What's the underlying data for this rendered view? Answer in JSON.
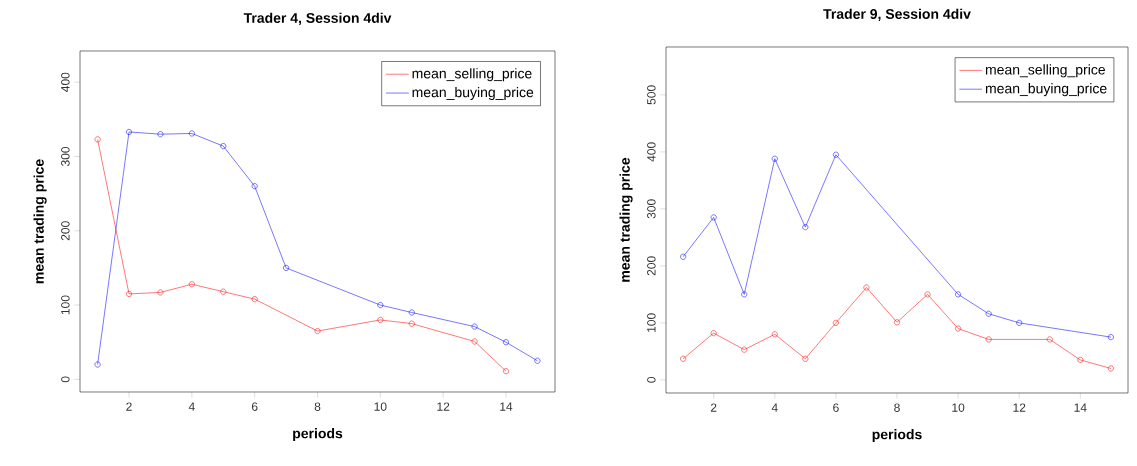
{
  "chart_data": [
    {
      "type": "line",
      "title": "Trader 4, Session 4div",
      "xlabel": "periods",
      "ylabel": "mean trading price",
      "xlim": [
        0.44,
        15.56
      ],
      "ylim": [
        -17,
        442
      ],
      "xticks": [
        2,
        4,
        6,
        8,
        10,
        12,
        14
      ],
      "yticks": [
        0,
        100,
        200,
        300,
        400
      ],
      "legend": "top right",
      "marker": "circle",
      "line_style": "solid",
      "series": [
        {
          "name": "mean_selling_price",
          "color": "#ff0000",
          "x": [
            1,
            2,
            3,
            4,
            5,
            6,
            8,
            10,
            11,
            13,
            14
          ],
          "values": [
            323,
            115,
            117,
            128,
            118,
            108,
            65,
            80,
            75,
            51,
            11
          ]
        },
        {
          "name": "mean_buying_price",
          "color": "#0000ff",
          "x": [
            1,
            2,
            3,
            4,
            5,
            6,
            7,
            10,
            11,
            13,
            14,
            15
          ],
          "values": [
            20,
            333,
            330,
            331,
            314,
            260,
            150,
            100,
            90,
            71,
            50,
            25
          ]
        }
      ]
    },
    {
      "type": "line",
      "title": "Trader 9, Session 4div",
      "xlabel": "periods",
      "ylabel": "mean trading price",
      "xlim": [
        0.44,
        15.56
      ],
      "ylim": [
        -23,
        584
      ],
      "xticks": [
        2,
        4,
        6,
        8,
        10,
        12,
        14
      ],
      "yticks": [
        0,
        100,
        200,
        300,
        400,
        500
      ],
      "legend": "top right",
      "marker": "circle",
      "line_style": "solid",
      "series": [
        {
          "name": "mean_selling_price",
          "color": "#ff0000",
          "x": [
            1,
            2,
            3,
            4,
            5,
            6,
            7,
            8,
            9,
            10,
            11,
            13,
            14,
            15
          ],
          "values": [
            37,
            82,
            53,
            80,
            37,
            100,
            162,
            101,
            150,
            90,
            71,
            71,
            35,
            20
          ]
        },
        {
          "name": "mean_buying_price",
          "color": "#0000ff",
          "x": [
            1,
            2,
            3,
            4,
            5,
            6,
            10,
            11,
            12,
            15
          ],
          "values": [
            216,
            285,
            150,
            388,
            268,
            395,
            150,
            116,
            100,
            75
          ]
        }
      ]
    }
  ]
}
